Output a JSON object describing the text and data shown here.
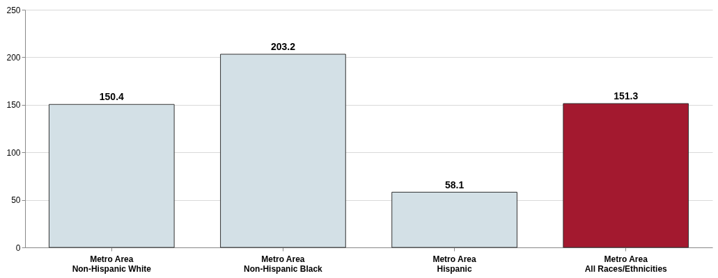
{
  "chart_data": {
    "type": "bar",
    "categories": [
      "Metro Area\nNon-Hispanic White",
      "Metro Area\nNon-Hispanic Black",
      "Metro Area\nHispanic",
      "Metro Area\nAll Races/Ethnicities"
    ],
    "values": [
      150.4,
      203.2,
      58.1,
      151.3
    ],
    "colors": [
      "#d3e0e6",
      "#d3e0e6",
      "#d3e0e6",
      "#a3192f"
    ],
    "ylim": [
      0,
      250
    ],
    "yticks": [
      0,
      50,
      100,
      150,
      200,
      250
    ],
    "grid": "y",
    "data_labels": true
  }
}
